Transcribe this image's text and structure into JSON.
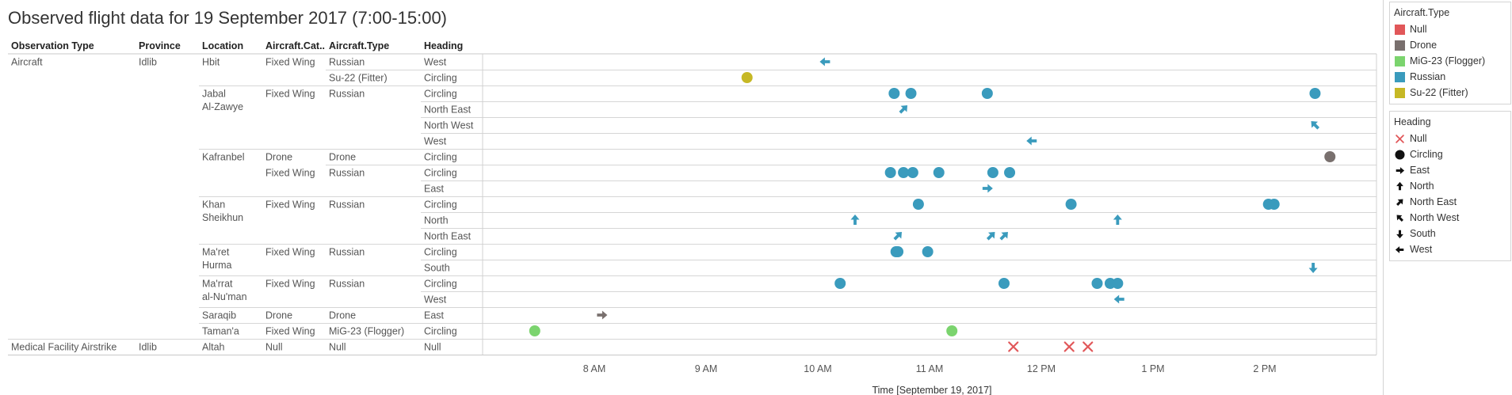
{
  "title": "Observed flight data for 19 September 2017 (7:00-15:00)",
  "headers": [
    "Observation Type",
    "Province",
    "Location",
    "Aircraft.Cat..",
    "Aircraft.Type",
    "Heading"
  ],
  "rows": [
    {
      "obs": "Aircraft",
      "province": "Idlib",
      "location": "Hbit",
      "category": "Fixed Wing",
      "type": "Russian",
      "heading": "West"
    },
    {
      "obs": "",
      "province": "",
      "location": "",
      "category": "",
      "type": "Su-22 (Fitter)",
      "heading": "Circling"
    },
    {
      "obs": "",
      "province": "",
      "location": "Jabal\nAl-Zawye",
      "category": "Fixed Wing",
      "type": "Russian",
      "heading": "Circling"
    },
    {
      "obs": "",
      "province": "",
      "location": "",
      "category": "",
      "type": "",
      "heading": "North East"
    },
    {
      "obs": "",
      "province": "",
      "location": "",
      "category": "",
      "type": "",
      "heading": "North West"
    },
    {
      "obs": "",
      "province": "",
      "location": "",
      "category": "",
      "type": "",
      "heading": "West"
    },
    {
      "obs": "",
      "province": "",
      "location": "Kafranbel",
      "category": "Drone",
      "type": "Drone",
      "heading": "Circling"
    },
    {
      "obs": "",
      "province": "",
      "location": "",
      "category": "Fixed Wing",
      "type": "Russian",
      "heading": "Circling"
    },
    {
      "obs": "",
      "province": "",
      "location": "",
      "category": "",
      "type": "",
      "heading": "East"
    },
    {
      "obs": "",
      "province": "",
      "location": "Khan\nSheikhun",
      "category": "Fixed Wing",
      "type": "Russian",
      "heading": "Circling"
    },
    {
      "obs": "",
      "province": "",
      "location": "",
      "category": "",
      "type": "",
      "heading": "North"
    },
    {
      "obs": "",
      "province": "",
      "location": "",
      "category": "",
      "type": "",
      "heading": "North East"
    },
    {
      "obs": "",
      "province": "",
      "location": "Ma'ret\nHurma",
      "category": "Fixed Wing",
      "type": "Russian",
      "heading": "Circling"
    },
    {
      "obs": "",
      "province": "",
      "location": "",
      "category": "",
      "type": "",
      "heading": "South"
    },
    {
      "obs": "",
      "province": "",
      "location": "Ma'rrat\nal-Nu'man",
      "category": "Fixed Wing",
      "type": "Russian",
      "heading": "Circling"
    },
    {
      "obs": "",
      "province": "",
      "location": "",
      "category": "",
      "type": "",
      "heading": "West"
    },
    {
      "obs": "",
      "province": "",
      "location": "Saraqib",
      "category": "Drone",
      "type": "Drone",
      "heading": "East"
    },
    {
      "obs": "",
      "province": "",
      "location": "Taman'a",
      "category": "Fixed Wing",
      "type": "MiG-23 (Flogger)",
      "heading": "Circling"
    },
    {
      "obs": "Medical Facility Airstrike",
      "province": "Idlib",
      "location": "Altah",
      "category": "Null",
      "type": "Null",
      "heading": "Null"
    }
  ],
  "colors": {
    "Null": "#e15759",
    "Drone": "#79706e",
    "MiG-23 (Flogger)": "#7bd46e",
    "Russian": "#3a9bbd",
    "Su-22 (Fitter)": "#c6b825"
  },
  "legend_type": {
    "title": "Aircraft.Type",
    "items": [
      {
        "label": "Null",
        "color": "#e15759"
      },
      {
        "label": "Drone",
        "color": "#79706e"
      },
      {
        "label": "MiG-23 (Flogger)",
        "color": "#7bd46e"
      },
      {
        "label": "Russian",
        "color": "#3a9bbd"
      },
      {
        "label": "Su-22 (Fitter)",
        "color": "#c6b825"
      }
    ]
  },
  "legend_heading": {
    "title": "Heading",
    "items": [
      {
        "label": "Null",
        "shape": "cross-icon"
      },
      {
        "label": "Circling",
        "shape": "circle-icon"
      },
      {
        "label": "East",
        "shape": "arrow-east-icon"
      },
      {
        "label": "North",
        "shape": "arrow-north-icon"
      },
      {
        "label": "North East",
        "shape": "arrow-north-east-icon"
      },
      {
        "label": "North West",
        "shape": "arrow-north-west-icon"
      },
      {
        "label": "South",
        "shape": "arrow-south-icon"
      },
      {
        "label": "West",
        "shape": "arrow-west-icon"
      }
    ]
  },
  "chart_data": {
    "type": "scatter",
    "title": "Observed flight data for 19 September 2017 (7:00-15:00)",
    "xlabel": "Time [September 19, 2017]",
    "xlim": [
      "07:00",
      "15:00"
    ],
    "x_ticks": [
      {
        "time": "08:00",
        "label": "8 AM"
      },
      {
        "time": "09:00",
        "label": "9 AM"
      },
      {
        "time": "10:00",
        "label": "10 AM"
      },
      {
        "time": "11:00",
        "label": "11 AM"
      },
      {
        "time": "12:00",
        "label": "12 PM"
      },
      {
        "time": "13:00",
        "label": "1 PM"
      },
      {
        "time": "14:00",
        "label": "2 PM"
      }
    ],
    "grid": false,
    "legend": "right",
    "points": [
      {
        "row": 0,
        "time": "10:04",
        "type": "Russian",
        "heading": "West"
      },
      {
        "row": 1,
        "time": "09:22",
        "type": "Su-22 (Fitter)",
        "heading": "Circling"
      },
      {
        "row": 2,
        "time": "10:41",
        "type": "Russian",
        "heading": "Circling"
      },
      {
        "row": 2,
        "time": "10:50",
        "type": "Russian",
        "heading": "Circling"
      },
      {
        "row": 2,
        "time": "11:31",
        "type": "Russian",
        "heading": "Circling"
      },
      {
        "row": 2,
        "time": "14:27",
        "type": "Russian",
        "heading": "Circling"
      },
      {
        "row": 3,
        "time": "10:46",
        "type": "Russian",
        "heading": "North East"
      },
      {
        "row": 4,
        "time": "14:27",
        "type": "Russian",
        "heading": "North West"
      },
      {
        "row": 5,
        "time": "11:55",
        "type": "Russian",
        "heading": "West"
      },
      {
        "row": 6,
        "time": "14:35",
        "type": "Drone",
        "heading": "Circling"
      },
      {
        "row": 7,
        "time": "10:39",
        "type": "Russian",
        "heading": "Circling"
      },
      {
        "row": 7,
        "time": "10:46",
        "type": "Russian",
        "heading": "Circling"
      },
      {
        "row": 7,
        "time": "10:51",
        "type": "Russian",
        "heading": "Circling"
      },
      {
        "row": 7,
        "time": "11:05",
        "type": "Russian",
        "heading": "Circling"
      },
      {
        "row": 7,
        "time": "11:34",
        "type": "Russian",
        "heading": "Circling"
      },
      {
        "row": 7,
        "time": "11:43",
        "type": "Russian",
        "heading": "Circling"
      },
      {
        "row": 8,
        "time": "11:31",
        "type": "Russian",
        "heading": "East"
      },
      {
        "row": 9,
        "time": "10:54",
        "type": "Russian",
        "heading": "Circling"
      },
      {
        "row": 9,
        "time": "12:16",
        "type": "Russian",
        "heading": "Circling"
      },
      {
        "row": 9,
        "time": "14:02",
        "type": "Russian",
        "heading": "Circling"
      },
      {
        "row": 9,
        "time": "14:05",
        "type": "Russian",
        "heading": "Circling"
      },
      {
        "row": 10,
        "time": "10:20",
        "type": "Russian",
        "heading": "North"
      },
      {
        "row": 10,
        "time": "12:41",
        "type": "Russian",
        "heading": "North"
      },
      {
        "row": 11,
        "time": "10:43",
        "type": "Russian",
        "heading": "North East"
      },
      {
        "row": 11,
        "time": "11:33",
        "type": "Russian",
        "heading": "North East"
      },
      {
        "row": 11,
        "time": "11:40",
        "type": "Russian",
        "heading": "North East"
      },
      {
        "row": 12,
        "time": "10:42",
        "type": "Russian",
        "heading": "Circling"
      },
      {
        "row": 12,
        "time": "10:43",
        "type": "Russian",
        "heading": "Circling"
      },
      {
        "row": 12,
        "time": "10:59",
        "type": "Russian",
        "heading": "Circling"
      },
      {
        "row": 13,
        "time": "14:26",
        "type": "Russian",
        "heading": "South"
      },
      {
        "row": 14,
        "time": "10:12",
        "type": "Russian",
        "heading": "Circling"
      },
      {
        "row": 14,
        "time": "11:40",
        "type": "Russian",
        "heading": "Circling"
      },
      {
        "row": 14,
        "time": "12:30",
        "type": "Russian",
        "heading": "Circling"
      },
      {
        "row": 14,
        "time": "12:37",
        "type": "Russian",
        "heading": "Circling"
      },
      {
        "row": 14,
        "time": "12:41",
        "type": "Russian",
        "heading": "Circling"
      },
      {
        "row": 15,
        "time": "12:42",
        "type": "Russian",
        "heading": "West"
      },
      {
        "row": 16,
        "time": "08:04",
        "type": "Drone",
        "heading": "East"
      },
      {
        "row": 17,
        "time": "07:28",
        "type": "MiG-23 (Flogger)",
        "heading": "Circling"
      },
      {
        "row": 17,
        "time": "11:12",
        "type": "MiG-23 (Flogger)",
        "heading": "Circling"
      },
      {
        "row": 18,
        "time": "11:45",
        "type": "Null",
        "heading": "Null"
      },
      {
        "row": 18,
        "time": "12:15",
        "type": "Null",
        "heading": "Null"
      },
      {
        "row": 18,
        "time": "12:25",
        "type": "Null",
        "heading": "Null"
      }
    ]
  }
}
